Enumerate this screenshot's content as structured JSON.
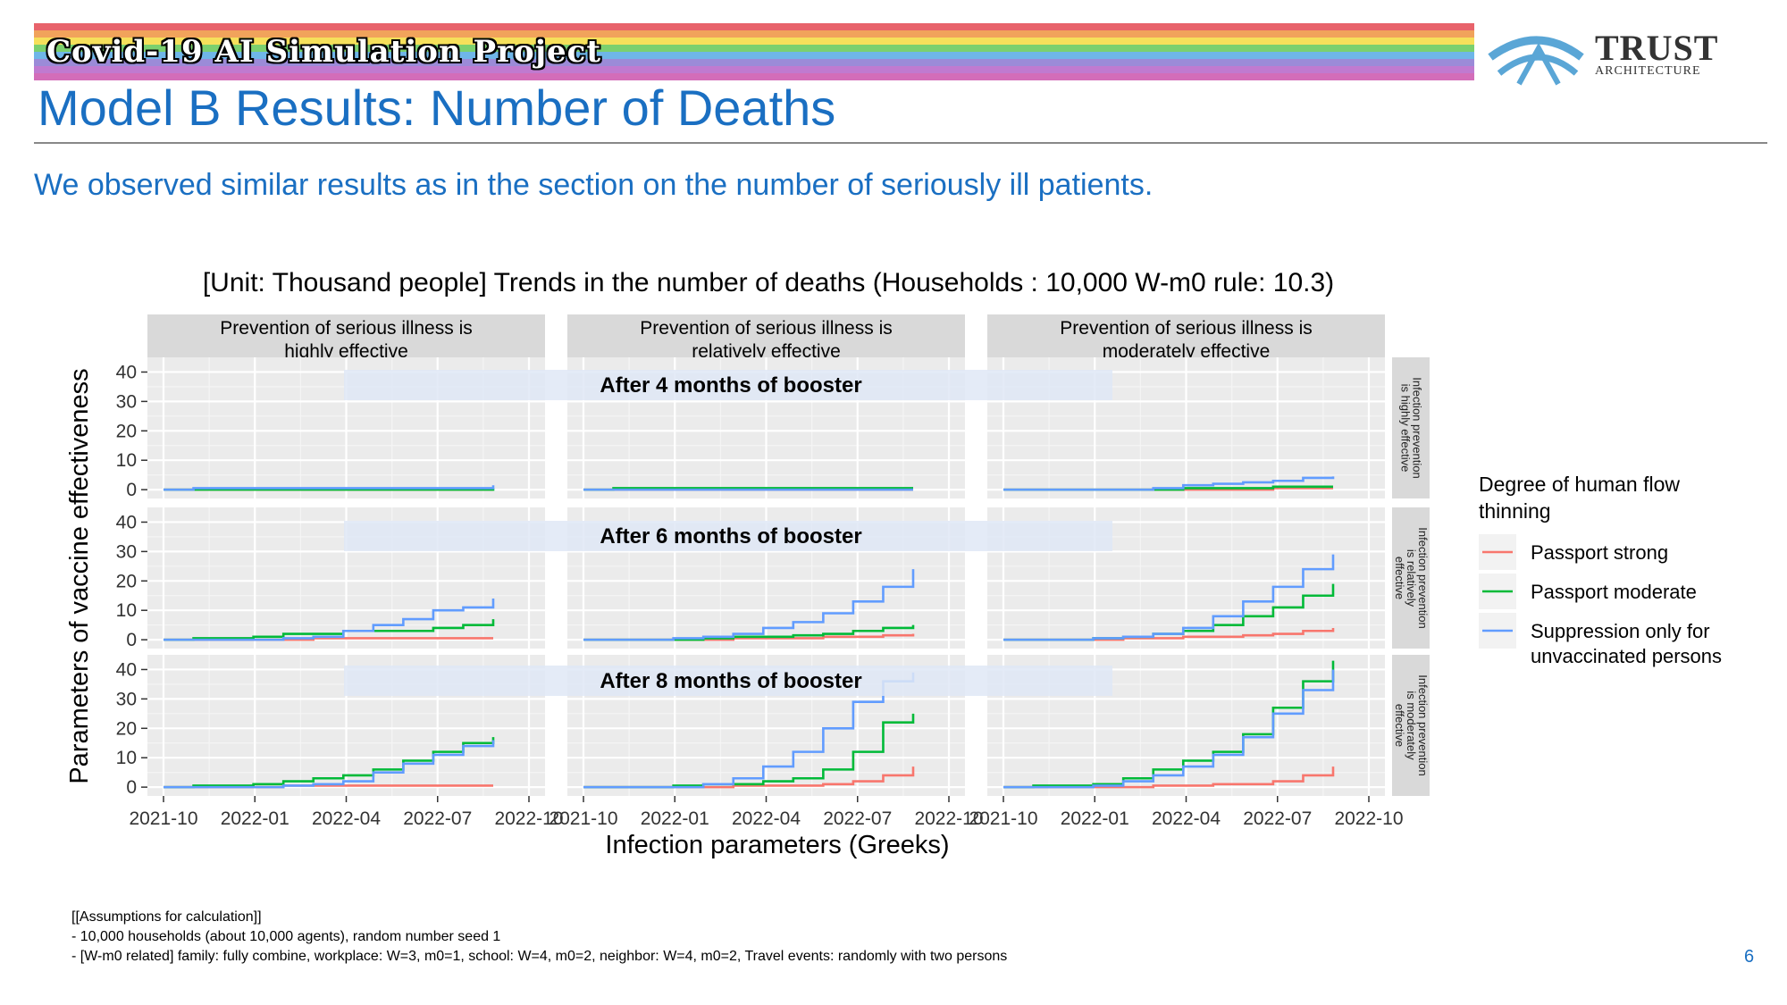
{
  "header": {
    "banner_text": "Covid-19 AI Simulation Project",
    "banner_colors": [
      "#e8636b",
      "#f1a35b",
      "#f6e05b",
      "#7bd06f",
      "#6fb6e8",
      "#9b8bd8",
      "#c07ad0",
      "#d36db9"
    ],
    "logo_word": "TRUST",
    "logo_sub": "ARCHITECTURE",
    "logo_icon": "arch-bridge-icon"
  },
  "page": {
    "title": "Model B Results: Number of Deaths",
    "subtitle": "We observed similar results as in the section on the number of seriously ill patients.",
    "page_number": "6"
  },
  "notes": [
    "[[Assumptions for calculation]]",
    "- 10,000 households (about 10,000 agents), random number seed 1",
    "- [W-m0 related] family: fully combine, workplace: W=3, m0=1, school: W=4, m0=2, neighbor: W=4, m0=2, Travel events: randomly with two persons"
  ],
  "chart_data": {
    "type": "line",
    "title": "[Unit: Thousand people] Trends in the number of deaths (Households : 10,000 W-m0 rule: 10.3)",
    "xlabel": "Infection parameters (Greeks)",
    "ylabel": "Parameters of vaccine effectiveness",
    "x_ticks": [
      "2021-10",
      "2022-01",
      "2022-04",
      "2022-07",
      "2022-10"
    ],
    "y_ticks": [
      0,
      10,
      20,
      30,
      40
    ],
    "ylim": [
      -3,
      45
    ],
    "grid": true,
    "column_facets": [
      "Prevention of serious illness is highly effective",
      "Prevention of serious illness is relatively effective",
      "Prevention of serious illness is moderately effective"
    ],
    "row_facets": [
      "Infection prevention is highly effective",
      "Infection prevention is relatively effective",
      "Infection prevention is moderately effective"
    ],
    "row_annotations": [
      "After 4 months of booster",
      "After 6 months of booster",
      "After 8 months of booster"
    ],
    "legend": {
      "title": "Degree of human flow thinning",
      "position": "right",
      "items": [
        {
          "name": "Passport strong",
          "color": "#f8766d"
        },
        {
          "name": "Passport moderate",
          "color": "#00ba38"
        },
        {
          "name": "Suppression only for unvaccinated persons",
          "color": "#619cff"
        }
      ]
    },
    "panels": [
      [
        {
          "series": [
            {
              "name": "Passport strong",
              "values": [
                0,
                0,
                0,
                0,
                0,
                0,
                0,
                0,
                0,
                0,
                0,
                0
              ]
            },
            {
              "name": "Passport moderate",
              "values": [
                0,
                0,
                0,
                0,
                0,
                0,
                0,
                0,
                0,
                0,
                0,
                0.5
              ]
            },
            {
              "name": "Suppression only for unvaccinated persons",
              "values": [
                0,
                0.5,
                0.5,
                0.5,
                0.5,
                0.5,
                0.5,
                0.5,
                0.5,
                0.5,
                0.5,
                1.5
              ]
            }
          ]
        },
        {
          "series": [
            {
              "name": "Passport strong",
              "values": [
                0,
                0,
                0,
                0,
                0,
                0,
                0,
                0,
                0,
                0,
                0,
                0
              ]
            },
            {
              "name": "Passport moderate",
              "values": [
                0,
                0.5,
                0.5,
                0.5,
                0.5,
                0.5,
                0.5,
                0.5,
                0.5,
                0.5,
                0.5,
                0.5
              ]
            },
            {
              "name": "Suppression only for unvaccinated persons",
              "values": [
                0,
                0,
                0,
                0,
                0,
                0,
                0,
                0,
                0,
                0,
                0,
                0
              ]
            }
          ]
        },
        {
          "series": [
            {
              "name": "Passport strong",
              "values": [
                0,
                0,
                0,
                0,
                0,
                0,
                0,
                0,
                0,
                0.5,
                0.5,
                0.5
              ]
            },
            {
              "name": "Passport moderate",
              "values": [
                0,
                0,
                0,
                0,
                0,
                0,
                0.5,
                0.5,
                0.5,
                1,
                1,
                1
              ]
            },
            {
              "name": "Suppression only for unvaccinated persons",
              "values": [
                0,
                0,
                0,
                0,
                0,
                0.5,
                1.5,
                2,
                2.5,
                3,
                4,
                4.5
              ]
            }
          ]
        }
      ],
      [
        {
          "series": [
            {
              "name": "Passport strong",
              "values": [
                0,
                0,
                0,
                0,
                0,
                0.5,
                0.5,
                0.5,
                0.5,
                0.5,
                0.5,
                0.5
              ]
            },
            {
              "name": "Passport moderate",
              "values": [
                0,
                0.5,
                0.5,
                1,
                2,
                2,
                3,
                3,
                3,
                4,
                5,
                7
              ]
            },
            {
              "name": "Suppression only for unvaccinated persons",
              "values": [
                0,
                0,
                0,
                0,
                0.5,
                1,
                3,
                5,
                7,
                10,
                11,
                14
              ]
            }
          ]
        },
        {
          "series": [
            {
              "name": "Passport strong",
              "values": [
                0,
                0,
                0,
                0,
                0,
                0.5,
                0.5,
                0.5,
                1,
                1,
                1.5,
                2
              ]
            },
            {
              "name": "Passport moderate",
              "values": [
                0,
                0,
                0,
                0,
                0.5,
                1,
                1,
                1.5,
                2,
                3,
                4,
                5
              ]
            },
            {
              "name": "Suppression only for unvaccinated persons",
              "values": [
                0,
                0,
                0,
                0.5,
                1,
                2,
                4,
                6,
                9,
                13,
                18,
                24
              ]
            }
          ]
        },
        {
          "series": [
            {
              "name": "Passport strong",
              "values": [
                0,
                0,
                0,
                0,
                0.5,
                0.5,
                1,
                1,
                1.5,
                2,
                3,
                4
              ]
            },
            {
              "name": "Passport moderate",
              "values": [
                0,
                0,
                0,
                0.5,
                1,
                2,
                3,
                5,
                8,
                11,
                15,
                19
              ]
            },
            {
              "name": "Suppression only for unvaccinated persons",
              "values": [
                0,
                0,
                0,
                0.5,
                1,
                2,
                4,
                8,
                13,
                18,
                24,
                29
              ]
            }
          ]
        }
      ],
      [
        {
          "series": [
            {
              "name": "Passport strong",
              "values": [
                0,
                0,
                0,
                0,
                0.5,
                0.5,
                0.5,
                0.5,
                0.5,
                0.5,
                0.5,
                0.5
              ]
            },
            {
              "name": "Passport moderate",
              "values": [
                0,
                0.5,
                0.5,
                1,
                2,
                3,
                4,
                6,
                9,
                12,
                15,
                17
              ]
            },
            {
              "name": "Suppression only for unvaccinated persons",
              "values": [
                0,
                0,
                0,
                0,
                0.5,
                1,
                2,
                5,
                8,
                11,
                14,
                16
              ]
            }
          ]
        },
        {
          "series": [
            {
              "name": "Passport strong",
              "values": [
                0,
                0,
                0,
                0,
                0,
                0.5,
                0.5,
                0.5,
                1,
                2,
                4,
                7
              ]
            },
            {
              "name": "Passport moderate",
              "values": [
                0,
                0,
                0,
                0.5,
                1,
                1,
                2,
                3,
                6,
                12,
                22,
                25
              ]
            },
            {
              "name": "Suppression only for unvaccinated persons",
              "values": [
                0,
                0,
                0,
                0,
                1,
                3,
                7,
                12,
                20,
                29,
                36,
                39
              ]
            }
          ]
        },
        {
          "series": [
            {
              "name": "Passport strong",
              "values": [
                0,
                0,
                0,
                0,
                0,
                0.5,
                0.5,
                1,
                1,
                2,
                4,
                7
              ]
            },
            {
              "name": "Passport moderate",
              "values": [
                0,
                0.5,
                0.5,
                1,
                3,
                6,
                9,
                12,
                18,
                27,
                36,
                43
              ]
            },
            {
              "name": "Suppression only for unvaccinated persons",
              "values": [
                0,
                0,
                0,
                0.5,
                2,
                4,
                7,
                11,
                17,
                25,
                33,
                40
              ]
            }
          ]
        }
      ]
    ]
  }
}
